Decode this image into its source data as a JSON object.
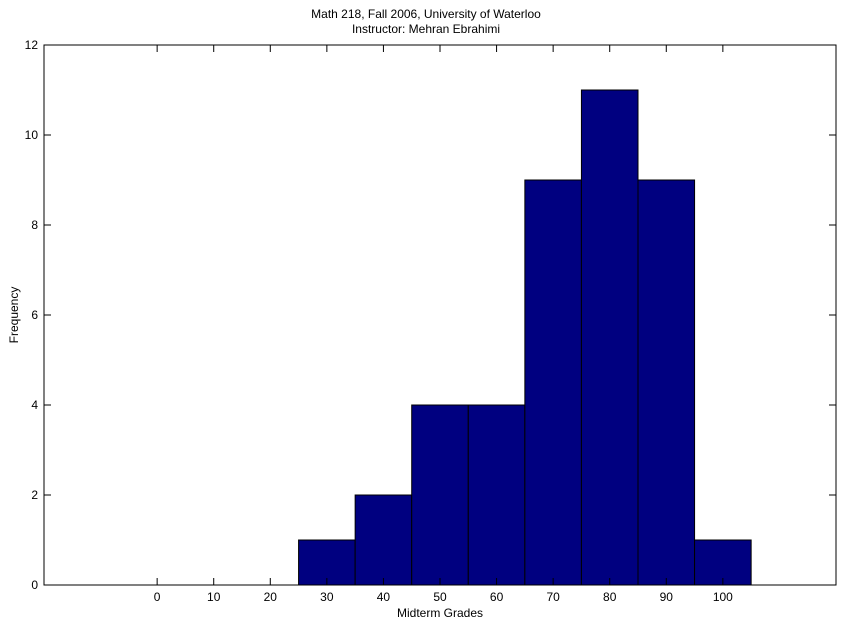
{
  "chart_data": {
    "type": "bar",
    "title": "Math 218, Fall 2006, University of Waterloo",
    "subtitle": "Instructor: Mehran Ebrahimi",
    "xlabel": "Midterm Grades",
    "ylabel": "Frequency",
    "x": [
      0,
      10,
      20,
      30,
      40,
      50,
      60,
      70,
      80,
      90,
      100
    ],
    "values": [
      0,
      0,
      0,
      1,
      2,
      4,
      4,
      9,
      11,
      9,
      1
    ],
    "bin_width": 10,
    "xlim": [
      -20,
      120
    ],
    "ylim": [
      0,
      12
    ],
    "xticks": [
      0,
      10,
      20,
      30,
      40,
      50,
      60,
      70,
      80,
      90,
      100
    ],
    "yticks": [
      0,
      2,
      4,
      6,
      8,
      10,
      12
    ],
    "grid": false,
    "bar_color": "#000080",
    "edge_color": "#000000"
  }
}
